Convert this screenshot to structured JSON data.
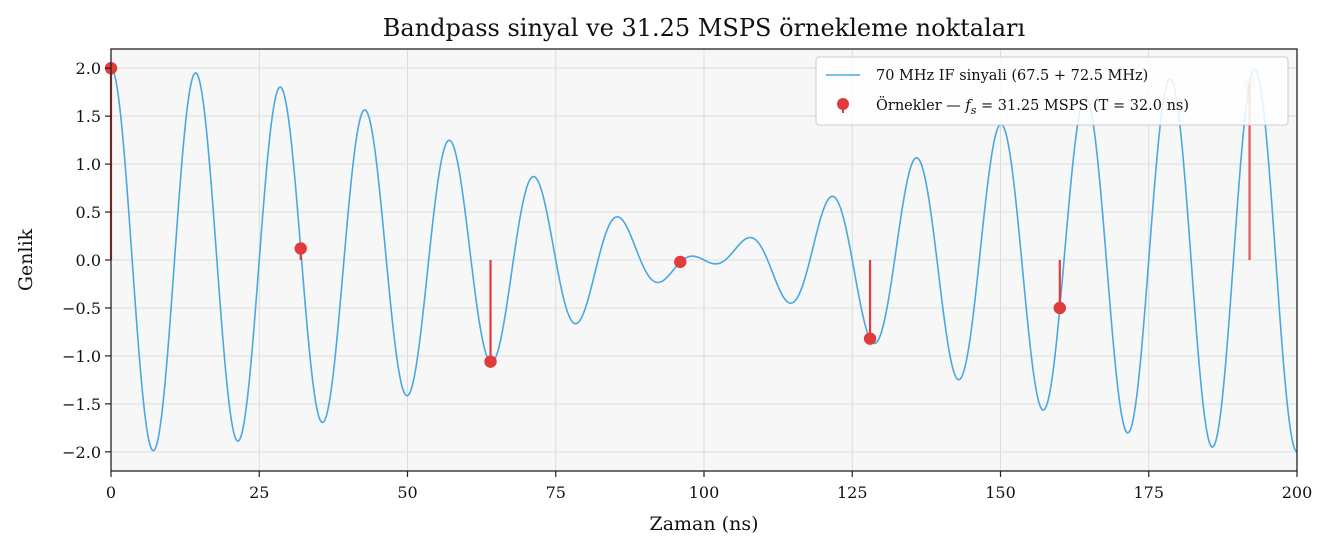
{
  "chart_data": {
    "type": "line",
    "title": "Bandpass sinyal ve 31.25 MSPS örnekleme noktaları",
    "xlabel": "Zaman (ns)",
    "ylabel": "Genlik",
    "xlim": [
      0,
      200
    ],
    "ylim": [
      -2.2,
      2.2
    ],
    "xticks": [
      0,
      25,
      50,
      75,
      100,
      125,
      150,
      175,
      200
    ],
    "xtick_labels": [
      "0",
      "25",
      "50",
      "75",
      "100",
      "125",
      "150",
      "175",
      "200"
    ],
    "yticks": [
      2.0,
      1.5,
      1.0,
      0.5,
      0.0,
      -0.5,
      -1.0,
      -1.5,
      -2.0
    ],
    "ytick_labels": [
      "2.0",
      "1.5",
      "1.0",
      "0.5",
      "0.0",
      "−0.5",
      "−1.0",
      "−1.5",
      "−2.0"
    ],
    "grid": true,
    "legend_position": "top-right",
    "series": [
      {
        "name": "70 MHz IF sinyali (67.5 + 72.5 MHz)",
        "kind": "line",
        "color": "#4aa8e0",
        "components_mhz": [
          67.5,
          72.5
        ],
        "formula": "cos(2π·67.5MHz·t) + cos(2π·72.5MHz·t)"
      },
      {
        "name_parts": [
          "Örnekler — ",
          "f",
          "s",
          " = 31.25 MSPS (T = 32.0 ns)"
        ],
        "kind": "stem",
        "color": "#e03c3c",
        "x": [
          0,
          32,
          64,
          96,
          128,
          160,
          192
        ],
        "y": [
          2.0,
          0.12,
          -1.06,
          -0.02,
          -0.82,
          -0.5,
          1.84
        ]
      }
    ]
  }
}
